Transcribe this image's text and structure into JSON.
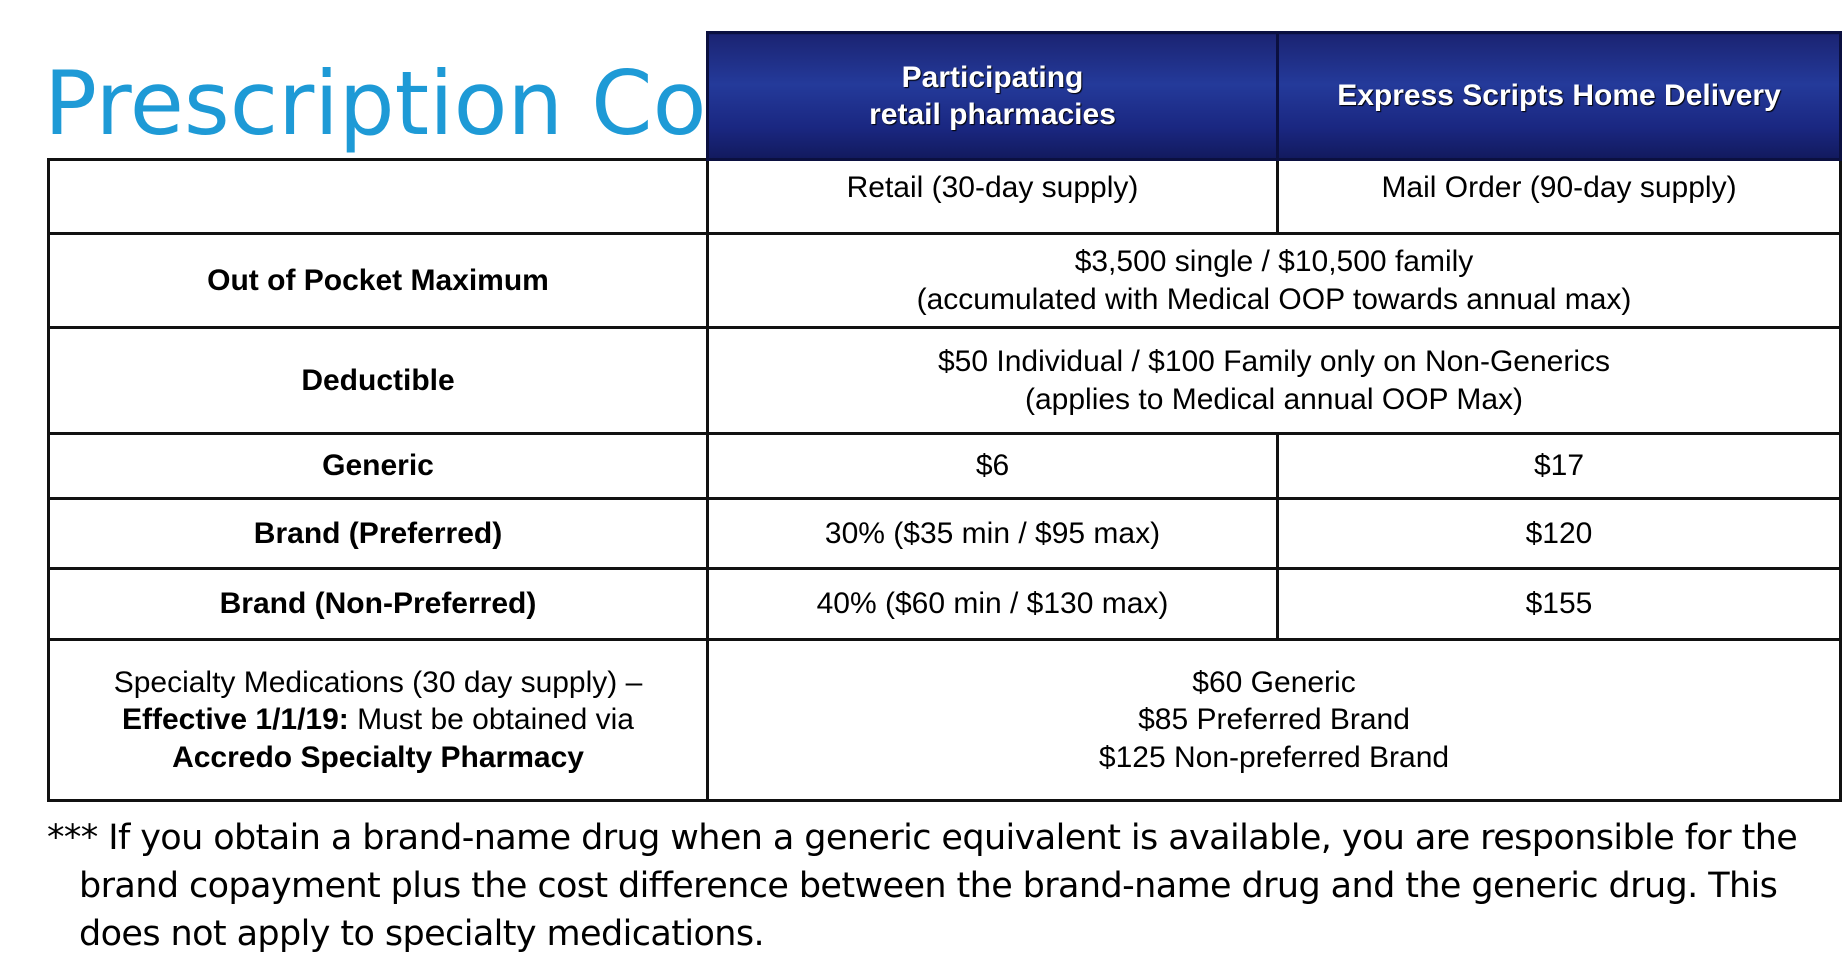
{
  "title": "Prescription Costs",
  "headers": {
    "retail": [
      "Participating",
      "retail pharmacies"
    ],
    "mail": "Express Scripts Home Delivery"
  },
  "supply": {
    "retail": "Retail (30-day supply)",
    "mail": "Mail Order (90-day supply)"
  },
  "rows": {
    "oop": {
      "label": "Out of Pocket Maximum",
      "value_line1": "$3,500 single / $10,500 family",
      "value_line2": "(accumulated with Medical OOP towards annual max)"
    },
    "deductible": {
      "label": "Deductible",
      "value_line1": "$50 Individual / $100 Family only on Non-Generics",
      "value_line2": "(applies to Medical annual OOP Max)"
    },
    "generic": {
      "label": "Generic",
      "retail": "$6",
      "mail": "$17"
    },
    "brand_preferred": {
      "label": "Brand (Preferred)",
      "retail": "30% ($35 min / $95 max)",
      "mail": "$120"
    },
    "brand_non_preferred": {
      "label": "Brand (Non-Preferred)",
      "retail": "40% ($60 min / $130 max)",
      "mail": "$155"
    },
    "specialty": {
      "label_line1": "Specialty Medications (30 day supply) –",
      "label_line2_bold": "Effective 1/1/19:",
      "label_line2_rest": " Must be obtained via",
      "label_line3": "Accredo Specialty Pharmacy",
      "values": [
        "$60 Generic",
        "$85 Preferred Brand",
        "$125 Non-preferred Brand"
      ]
    }
  },
  "footnote": "*** If you obtain a brand-name drug when a generic equivalent is available, you are responsible for the brand copayment plus the cost difference between the brand-name drug and the generic drug. This does not apply to specialty medications.",
  "colors": {
    "title": "#1E9AD6",
    "header_bg": "#1B2473",
    "header_text": "#FFFFFF",
    "border": "#111111"
  }
}
